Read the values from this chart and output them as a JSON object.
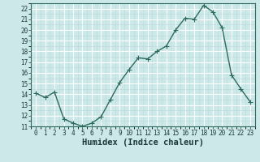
{
  "x": [
    0,
    1,
    2,
    3,
    4,
    5,
    6,
    7,
    8,
    9,
    10,
    11,
    12,
    13,
    14,
    15,
    16,
    17,
    18,
    19,
    20,
    21,
    22,
    23
  ],
  "y": [
    14.1,
    13.7,
    14.2,
    11.7,
    11.3,
    11.0,
    11.3,
    11.9,
    13.5,
    15.1,
    16.3,
    17.4,
    17.3,
    18.0,
    18.5,
    20.0,
    21.1,
    21.0,
    22.3,
    21.7,
    20.2,
    15.8,
    14.5,
    13.3
  ],
  "line_color": "#2d6b5e",
  "marker": "+",
  "marker_size": 4,
  "marker_color": "#2d6b5e",
  "bg_color": "#cce8e8",
  "grid_major_color": "#ffffff",
  "grid_minor_color": "#b8d8d8",
  "xlabel": "Humidex (Indice chaleur)",
  "xlim": [
    -0.5,
    23.5
  ],
  "ylim": [
    11,
    22.5
  ],
  "yticks": [
    11,
    12,
    13,
    14,
    15,
    16,
    17,
    18,
    19,
    20,
    21,
    22
  ],
  "xticks": [
    0,
    1,
    2,
    3,
    4,
    5,
    6,
    7,
    8,
    9,
    10,
    11,
    12,
    13,
    14,
    15,
    16,
    17,
    18,
    19,
    20,
    21,
    22,
    23
  ],
  "tick_fontsize": 5.5,
  "xlabel_fontsize": 7.5,
  "line_width": 1.0,
  "spine_color": "#2d6b5e"
}
